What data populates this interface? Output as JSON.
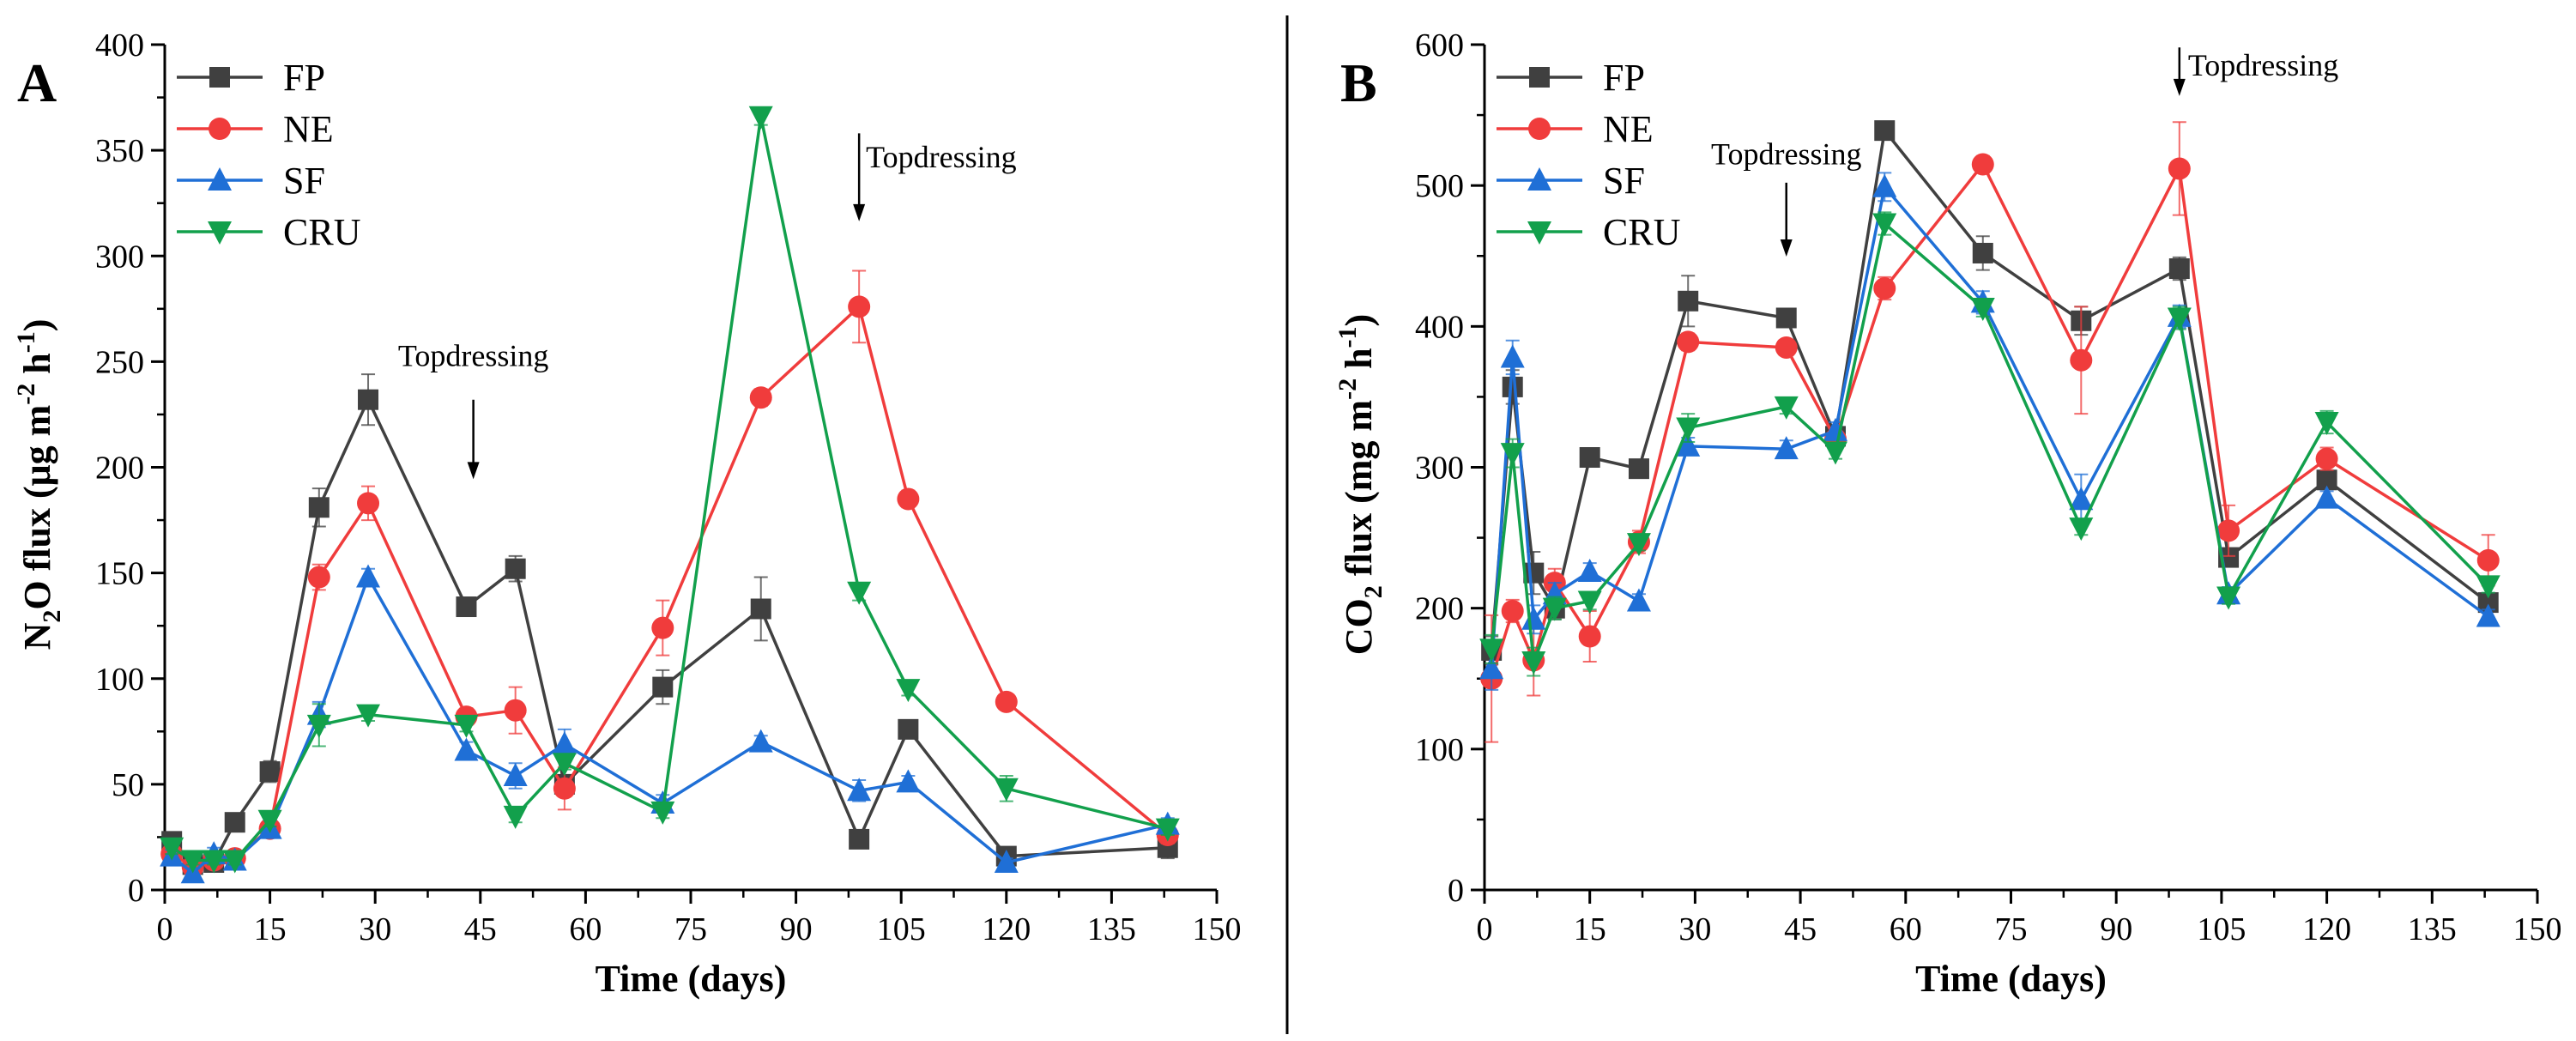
{
  "figure": {
    "divider": true
  },
  "colors": {
    "FP": "#404040",
    "NE": "#f03c3c",
    "SF": "#1f6fd6",
    "CRU": "#12a04c",
    "axis": "#000000"
  },
  "chart_data": [
    {
      "panel": "A",
      "panel_label": "A",
      "type": "line",
      "title": "",
      "xlabel": "Time (days)",
      "ylabel": {
        "base": "N",
        "sub": "2",
        "rest": "O flux (μg m",
        "exp1": "-2",
        "mid": " h",
        "exp2": "-1",
        "close": ")"
      },
      "xlim": [
        0,
        150
      ],
      "ylim": [
        0,
        400
      ],
      "xticks": [
        0,
        15,
        30,
        45,
        60,
        75,
        90,
        105,
        120,
        135,
        150
      ],
      "yticks": [
        0,
        50,
        100,
        150,
        200,
        250,
        300,
        350,
        400
      ],
      "x": [
        1,
        4,
        7,
        10,
        15,
        22,
        29,
        43,
        50,
        57,
        71,
        85,
        99,
        106,
        120,
        143
      ],
      "series": [
        {
          "name": "FP",
          "marker": "square",
          "values": [
            23,
            12,
            13,
            32,
            56,
            181,
            232,
            134,
            152,
            50,
            96,
            133,
            24,
            76,
            16,
            20
          ],
          "errors": [
            3,
            2,
            2,
            3,
            5,
            9,
            12,
            4,
            6,
            4,
            8,
            15,
            3,
            4,
            2,
            5
          ]
        },
        {
          "name": "NE",
          "marker": "circle",
          "values": [
            17,
            11,
            14,
            15,
            29,
            148,
            183,
            82,
            85,
            48,
            124,
            233,
            276,
            185,
            89,
            26
          ],
          "errors": [
            3,
            2,
            2,
            2,
            4,
            6,
            8,
            4,
            11,
            10,
            13,
            4,
            17,
            4,
            3,
            4
          ]
        },
        {
          "name": "SF",
          "marker": "triangle",
          "values": [
            16,
            8,
            17,
            14,
            29,
            83,
            148,
            66,
            54,
            69,
            41,
            70,
            47,
            51,
            13,
            31
          ],
          "errors": [
            3,
            2,
            3,
            2,
            4,
            6,
            4,
            4,
            6,
            7,
            4,
            3,
            5,
            3,
            2,
            3
          ]
        },
        {
          "name": "CRU",
          "marker": "inverted-triangle",
          "values": [
            20,
            14,
            14,
            14,
            33,
            78,
            83,
            78,
            35,
            60,
            37,
            366,
            141,
            95,
            48,
            29
          ],
          "errors": [
            3,
            2,
            2,
            2,
            3,
            10,
            3,
            3,
            3,
            3,
            3,
            4,
            4,
            3,
            6,
            3
          ]
        }
      ],
      "annotations": [
        {
          "text": "Topdressing",
          "x": 44,
          "text_y": 248,
          "arrow_from": 232,
          "arrow_to": 196
        },
        {
          "text": "Topdressing",
          "x": 99,
          "text_y": 342,
          "arrow_from": 358,
          "arrow_to": 318
        }
      ],
      "legend": {
        "position": "top-left",
        "entries": [
          "FP",
          "NE",
          "SF",
          "CRU"
        ]
      }
    },
    {
      "panel": "B",
      "panel_label": "B",
      "type": "line",
      "title": "",
      "xlabel": "Time (days)",
      "ylabel": {
        "base": "CO",
        "sub": "2",
        "rest": " flux (mg m",
        "exp1": "-2",
        "mid": " h",
        "exp2": "-1",
        "close": ")"
      },
      "xlim": [
        0,
        150
      ],
      "ylim": [
        0,
        600
      ],
      "xticks": [
        0,
        15,
        30,
        45,
        60,
        75,
        90,
        105,
        120,
        135,
        150
      ],
      "yticks": [
        0,
        100,
        200,
        300,
        400,
        500,
        600
      ],
      "x": [
        1,
        4,
        7,
        10,
        15,
        22,
        29,
        43,
        50,
        57,
        71,
        85,
        99,
        106,
        120,
        143
      ],
      "series": [
        {
          "name": "FP",
          "marker": "square",
          "values": [
            170,
            357,
            225,
            200,
            307,
            299,
            418,
            406,
            322,
            539,
            452,
            404,
            441,
            236,
            291,
            204
          ],
          "errors": [
            10,
            12,
            15,
            8,
            5,
            5,
            18,
            5,
            6,
            5,
            12,
            10,
            8,
            5,
            5,
            6
          ]
        },
        {
          "name": "NE",
          "marker": "circle",
          "values": [
            150,
            198,
            163,
            218,
            180,
            247,
            389,
            385,
            320,
            427,
            515,
            376,
            512,
            255,
            306,
            234
          ],
          "errors": [
            45,
            8,
            25,
            10,
            18,
            8,
            6,
            5,
            6,
            8,
            6,
            38,
            33,
            18,
            8,
            18
          ]
        },
        {
          "name": "SF",
          "marker": "triangle",
          "values": [
            157,
            378,
            192,
            210,
            226,
            205,
            315,
            313,
            326,
            499,
            417,
            277,
            407,
            210,
            278,
            194
          ],
          "errors": [
            15,
            12,
            10,
            8,
            6,
            5,
            6,
            6,
            6,
            10,
            8,
            18,
            8,
            5,
            5,
            5
          ]
        },
        {
          "name": "CRU",
          "marker": "inverted-triangle",
          "values": [
            171,
            310,
            162,
            200,
            205,
            246,
            328,
            343,
            311,
            473,
            413,
            257,
            406,
            208,
            332,
            216
          ],
          "errors": [
            10,
            10,
            10,
            8,
            6,
            5,
            10,
            5,
            5,
            8,
            6,
            5,
            8,
            5,
            8,
            5
          ]
        }
      ],
      "annotations": [
        {
          "text": "Topdressing",
          "x": 43,
          "text_y": 515,
          "arrow_from": 502,
          "arrow_to": 452
        },
        {
          "text": "Topdressing",
          "x": 99,
          "text_y": 578,
          "arrow_from": 598,
          "arrow_to": 566
        }
      ],
      "legend": {
        "position": "top-left",
        "entries": [
          "FP",
          "NE",
          "SF",
          "CRU"
        ]
      }
    }
  ]
}
